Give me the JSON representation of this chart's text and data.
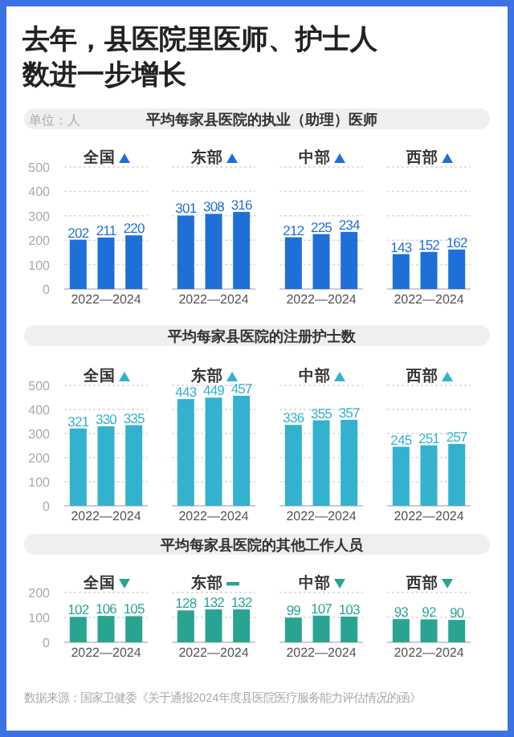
{
  "chart_data": [
    {
      "type": "bar",
      "title": "平均每家县医院的执业（助理）医师",
      "xlabel": "2022—2024",
      "categories": [
        "全国",
        "东部",
        "中部",
        "西部"
      ],
      "series": [
        {
          "color": "#1f6fd8",
          "values": [
            202,
            301,
            212,
            143
          ]
        },
        {
          "color": "#1f6fd8",
          "values": [
            211,
            308,
            225,
            152
          ]
        },
        {
          "color": "#1f6fd8",
          "values": [
            220,
            316,
            234,
            162
          ]
        }
      ],
      "data_labels": true,
      "ylim": [
        0,
        500
      ],
      "yticks": [
        0,
        100,
        200,
        300,
        400,
        500
      ],
      "grid": "y",
      "annotations": [
        "去年，县医院里医师、护士人数进一步增长",
        "单位：人"
      ]
    },
    {
      "type": "bar",
      "title": "平均每家县医院的注册护士数",
      "xlabel": "2022—2024",
      "categories": [
        "全国",
        "东部",
        "中部",
        "西部"
      ],
      "series": [
        {
          "color": "#33b2cf",
          "values": [
            321,
            443,
            336,
            245
          ]
        },
        {
          "color": "#33b2cf",
          "values": [
            330,
            449,
            355,
            251
          ]
        },
        {
          "color": "#33b2cf",
          "values": [
            335,
            457,
            357,
            257
          ]
        }
      ],
      "data_labels": true,
      "ylim": [
        0,
        500
      ],
      "yticks": [
        0,
        100,
        200,
        300,
        400,
        500
      ],
      "grid": "y"
    },
    {
      "type": "bar",
      "title": "平均每家县医院的其他工作人员",
      "xlabel": "2022—2024",
      "categories": [
        "全国",
        "东部",
        "中部",
        "西部"
      ],
      "series": [
        {
          "color": "#29a493",
          "values": [
            102,
            128,
            99,
            93
          ]
        },
        {
          "color": "#29a493",
          "values": [
            106,
            132,
            107,
            92
          ]
        },
        {
          "color": "#29a493",
          "values": [
            105,
            132,
            103,
            90
          ]
        }
      ],
      "data_labels": true,
      "ylim": [
        0,
        200
      ],
      "yticks": [
        0,
        100,
        200
      ],
      "grid": "y",
      "annotations": [
        "数据来源：国家卫健委《关于通报2024年度县医院医疗服务能力评估情况的函》"
      ]
    }
  ]
}
